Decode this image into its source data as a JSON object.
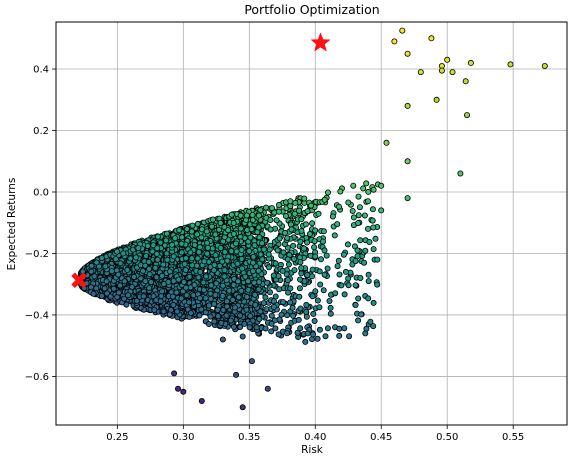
{
  "chart_data": {
    "type": "scatter",
    "title": "Portfolio Optimization",
    "xlabel": "Risk",
    "ylabel": "Expected Returns",
    "xlim": [
      0.2035,
      0.5908
    ],
    "ylim": [
      -0.758,
      0.553
    ],
    "xticks": [
      0.25,
      0.3,
      0.35,
      0.4,
      0.45,
      0.5,
      0.55
    ],
    "xtick_labels": [
      "0.25",
      "0.30",
      "0.35",
      "0.40",
      "0.45",
      "0.50",
      "0.55"
    ],
    "yticks": [
      -0.6,
      -0.4,
      -0.2,
      0.0,
      0.2,
      0.4
    ],
    "ytick_labels": [
      "−0.6",
      "−0.4",
      "−0.2",
      "0.0",
      "0.2",
      "0.4"
    ],
    "grid": true,
    "colormap": "viridis",
    "point_edge_color": "#000000",
    "highlights": [
      {
        "name": "max-sharpe-star",
        "marker": "star",
        "color": "#ff1010",
        "x": 0.404,
        "y": 0.485
      },
      {
        "name": "min-variance-cross",
        "marker": "x",
        "color": "#ff1010",
        "x": 0.221,
        "y": -0.287
      }
    ],
    "outliers": [
      [
        0.574,
        0.41
      ],
      [
        0.548,
        0.415
      ],
      [
        0.518,
        0.42
      ],
      [
        0.515,
        0.25
      ],
      [
        0.514,
        0.36
      ],
      [
        0.504,
        0.39
      ],
      [
        0.5,
        0.43
      ],
      [
        0.496,
        0.41
      ],
      [
        0.488,
        0.5
      ],
      [
        0.48,
        0.39
      ],
      [
        0.492,
        0.3
      ],
      [
        0.51,
        0.06
      ],
      [
        0.496,
        0.395
      ],
      [
        0.466,
        0.525
      ],
      [
        0.46,
        0.49
      ],
      [
        0.47,
        0.45
      ],
      [
        0.47,
        0.28
      ],
      [
        0.47,
        0.1
      ],
      [
        0.47,
        -0.02
      ],
      [
        0.454,
        0.16
      ],
      [
        0.45,
        0.02
      ],
      [
        0.44,
        -0.03
      ],
      [
        0.45,
        -0.06
      ],
      [
        0.44,
        -0.12
      ],
      [
        0.447,
        -0.22
      ],
      [
        0.437,
        -0.23
      ],
      [
        0.432,
        -0.19
      ],
      [
        0.407,
        -0.19
      ],
      [
        0.4,
        -0.21
      ],
      [
        0.394,
        -0.27
      ],
      [
        0.37,
        -0.34
      ],
      [
        0.352,
        -0.55
      ],
      [
        0.345,
        -0.47
      ],
      [
        0.345,
        -0.7
      ],
      [
        0.364,
        -0.64
      ],
      [
        0.314,
        -0.68
      ],
      [
        0.3,
        -0.65
      ],
      [
        0.296,
        -0.64
      ],
      [
        0.34,
        -0.595
      ],
      [
        0.33,
        -0.48
      ],
      [
        0.293,
        -0.59
      ]
    ]
  }
}
